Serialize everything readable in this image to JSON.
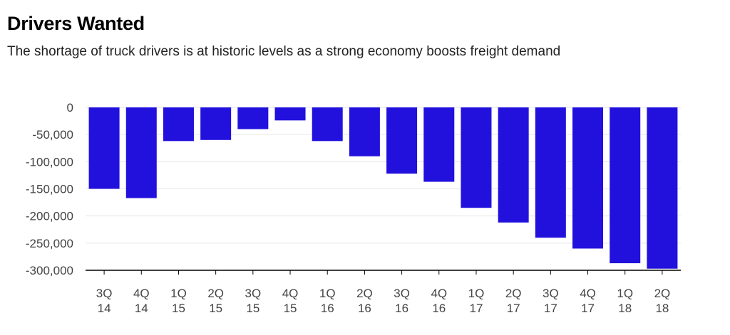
{
  "chart_data": {
    "type": "bar",
    "title": "Drivers Wanted",
    "subtitle": "The shortage of truck drivers is at historic levels as a strong economy boosts freight demand",
    "xlabel": "",
    "ylabel": "",
    "categories": [
      [
        "3Q",
        "14"
      ],
      [
        "4Q",
        "14"
      ],
      [
        "1Q",
        "15"
      ],
      [
        "2Q",
        "15"
      ],
      [
        "3Q",
        "15"
      ],
      [
        "4Q",
        "15"
      ],
      [
        "1Q",
        "16"
      ],
      [
        "2Q",
        "16"
      ],
      [
        "3Q",
        "16"
      ],
      [
        "4Q",
        "16"
      ],
      [
        "1Q",
        "17"
      ],
      [
        "2Q",
        "17"
      ],
      [
        "3Q",
        "17"
      ],
      [
        "4Q",
        "17"
      ],
      [
        "1Q",
        "18"
      ],
      [
        "2Q",
        "18"
      ]
    ],
    "values": [
      -150000,
      -167000,
      -62000,
      -60000,
      -40000,
      -24000,
      -62000,
      -90000,
      -122000,
      -137000,
      -185000,
      -212000,
      -240000,
      -260000,
      -287000,
      -297000
    ],
    "yticks": [
      0,
      -50000,
      -100000,
      -150000,
      -200000,
      -250000,
      -300000
    ],
    "ytick_labels": [
      "0",
      "-50,000",
      "-100,000",
      "-150,000",
      "-200,000",
      "-250,000",
      "-300,000"
    ],
    "ylim": [
      -300000,
      0
    ],
    "grid": true,
    "legend": "none",
    "bar_color": "#2211dd",
    "grid_color": "#e6e6e6",
    "axis_color": "#000000"
  }
}
